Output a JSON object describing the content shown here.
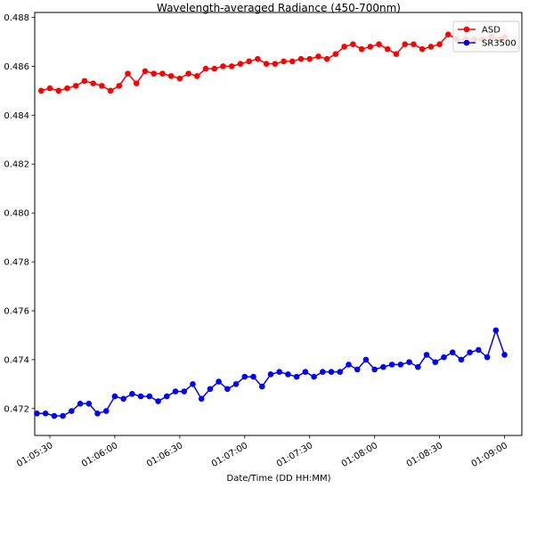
{
  "chart_data": {
    "type": "line",
    "title": "Wavelength-averaged Radiance (450-700nm)",
    "xlabel": "Date/Time (DD HH:MM)",
    "ylabel": "",
    "grid": false,
    "legend_position": "top-right",
    "x_ticks": [
      "01:05:30",
      "01:06:00",
      "01:06:30",
      "01:07:00",
      "01:07:30",
      "01:08:00",
      "01:08:30",
      "01:09:00"
    ],
    "y_ticks": [
      "0.472",
      "0.474",
      "0.476",
      "0.478",
      "0.480",
      "0.482",
      "0.484",
      "0.486",
      "0.488"
    ],
    "xlim": [
      "01:05:23",
      "01:09:08"
    ],
    "ylim": [
      0.4709,
      0.4882
    ],
    "x": [
      "01:05:26",
      "01:05:28",
      "01:05:30",
      "01:05:32",
      "01:05:34",
      "01:05:36",
      "01:05:38",
      "01:05:40",
      "01:05:42",
      "01:05:44",
      "01:05:46",
      "01:05:48",
      "01:05:50",
      "01:05:52",
      "01:05:54",
      "01:05:56",
      "01:05:58",
      "01:06:00",
      "01:06:02",
      "01:06:04",
      "01:06:06",
      "01:06:08",
      "01:06:10",
      "01:06:12",
      "01:06:14",
      "01:06:16",
      "01:06:18",
      "01:06:20",
      "01:06:22",
      "01:06:24",
      "01:06:26",
      "01:06:28",
      "01:06:30",
      "01:06:32",
      "01:06:34",
      "01:06:36",
      "01:06:38",
      "01:06:40",
      "01:06:42",
      "01:06:44",
      "01:06:46",
      "01:06:48",
      "01:06:50",
      "01:06:52",
      "01:06:54",
      "01:06:56",
      "01:06:58",
      "01:07:00",
      "01:07:02",
      "01:07:04",
      "01:07:06",
      "01:07:08",
      "01:07:10",
      "01:07:12",
      "01:07:14",
      "01:07:16",
      "01:07:18",
      "01:07:20",
      "01:07:22",
      "01:07:24",
      "01:07:26",
      "01:07:28",
      "01:07:30",
      "01:07:32",
      "01:07:34",
      "01:07:36",
      "01:07:38",
      "01:07:40",
      "01:07:42",
      "01:07:44",
      "01:07:46",
      "01:07:48",
      "01:07:50",
      "01:07:52",
      "01:07:54",
      "01:07:56",
      "01:07:58",
      "01:08:00",
      "01:08:02",
      "01:08:04",
      "01:08:06",
      "01:08:08",
      "01:08:10",
      "01:08:12",
      "01:08:14",
      "01:08:16",
      "01:08:18",
      "01:08:20",
      "01:08:22",
      "01:08:24",
      "01:08:26",
      "01:08:28",
      "01:08:30",
      "01:08:32",
      "01:08:34",
      "01:08:36",
      "01:08:38",
      "01:08:40",
      "01:08:42",
      "01:08:44",
      "01:08:46",
      "01:08:48",
      "01:08:50",
      "01:08:52",
      "01:08:54",
      "01:08:56",
      "01:08:58",
      "01:09:00"
    ],
    "series": [
      {
        "name": "ASD",
        "color": "#ff0000",
        "x": [
          "01:05:26",
          "01:05:30",
          "01:05:34",
          "01:05:38",
          "01:05:42",
          "01:05:46",
          "01:05:50",
          "01:05:54",
          "01:05:58",
          "01:06:02",
          "01:06:06",
          "01:06:10",
          "01:06:14",
          "01:06:18",
          "01:06:22",
          "01:06:26",
          "01:06:30",
          "01:06:34",
          "01:06:38",
          "01:06:42",
          "01:06:46",
          "01:06:50",
          "01:06:54",
          "01:06:58",
          "01:07:02",
          "01:07:06",
          "01:07:10",
          "01:07:14",
          "01:07:18",
          "01:07:22",
          "01:07:26",
          "01:07:30",
          "01:07:34",
          "01:07:38",
          "01:07:42",
          "01:07:46",
          "01:07:50",
          "01:07:54",
          "01:07:58",
          "01:08:02",
          "01:08:06",
          "01:08:10",
          "01:08:14",
          "01:08:18",
          "01:08:22",
          "01:08:26",
          "01:08:30",
          "01:08:34",
          "01:08:38",
          "01:08:42",
          "01:08:46",
          "01:08:50",
          "01:08:54",
          "01:08:58",
          "01:09:00"
        ],
        "values": [
          0.485,
          0.4851,
          0.485,
          0.4851,
          0.4852,
          0.4854,
          0.4853,
          0.4852,
          0.485,
          0.4852,
          0.4857,
          0.4853,
          0.4858,
          0.4857,
          0.4857,
          0.4856,
          0.4855,
          0.4857,
          0.4856,
          0.4859,
          0.4859,
          0.486,
          0.486,
          0.4861,
          0.4862,
          0.4863,
          0.4861,
          0.4861,
          0.4862,
          0.4862,
          0.4863,
          0.4863,
          0.4864,
          0.4863,
          0.4865,
          0.4868,
          0.4869,
          0.4867,
          0.4868,
          0.4869,
          0.4867,
          0.4865,
          0.4869,
          0.4869,
          0.4867,
          0.4868,
          0.4869,
          0.4873,
          0.4871,
          0.4871,
          0.4871,
          0.4871,
          0.4872,
          0.4871,
          0.4872
        ]
      },
      {
        "name": "SR3500",
        "color": "#0000ff",
        "x": [
          "01:05:24",
          "01:05:28",
          "01:05:32",
          "01:05:36",
          "01:05:40",
          "01:05:44",
          "01:05:48",
          "01:05:52",
          "01:05:56",
          "01:06:00",
          "01:06:04",
          "01:06:08",
          "01:06:12",
          "01:06:16",
          "01:06:20",
          "01:06:24",
          "01:06:28",
          "01:06:32",
          "01:06:36",
          "01:06:40",
          "01:06:44",
          "01:06:48",
          "01:06:52",
          "01:06:56",
          "01:07:00",
          "01:07:04",
          "01:07:08",
          "01:07:12",
          "01:07:16",
          "01:07:20",
          "01:07:24",
          "01:07:28",
          "01:07:32",
          "01:07:36",
          "01:07:40",
          "01:07:44",
          "01:07:48",
          "01:07:52",
          "01:07:56",
          "01:08:00",
          "01:08:04",
          "01:08:08",
          "01:08:12",
          "01:08:16",
          "01:08:20",
          "01:08:24",
          "01:08:28",
          "01:08:32",
          "01:08:36",
          "01:08:40",
          "01:08:44",
          "01:08:48",
          "01:08:52",
          "01:08:56",
          "01:09:00"
        ],
        "values": [
          0.4718,
          0.4718,
          0.4717,
          0.4717,
          0.4719,
          0.4722,
          0.4722,
          0.4718,
          0.4719,
          0.4725,
          0.4724,
          0.4726,
          0.4725,
          0.4725,
          0.4723,
          0.4725,
          0.4727,
          0.4727,
          0.473,
          0.4724,
          0.4728,
          0.4731,
          0.4728,
          0.473,
          0.4733,
          0.4733,
          0.4729,
          0.4734,
          0.4735,
          0.4734,
          0.4733,
          0.4735,
          0.4733,
          0.4735,
          0.4735,
          0.4735,
          0.4738,
          0.4736,
          0.474,
          0.4736,
          0.4737,
          0.4738,
          0.4738,
          0.4739,
          0.4737,
          0.4742,
          0.4739,
          0.4741,
          0.4743,
          0.474,
          0.4743,
          0.4744,
          0.4741,
          0.4752,
          0.4742
        ]
      }
    ]
  }
}
